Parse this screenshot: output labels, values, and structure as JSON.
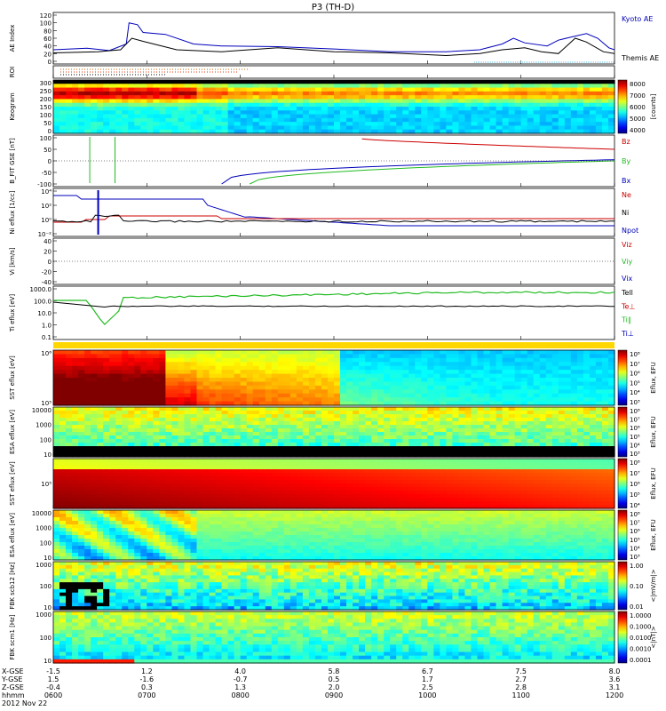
{
  "title": "P3 (TH-D)",
  "date_label": "2012 Nov 22",
  "colors": {
    "red": "#cc0000",
    "green": "#22bb22",
    "blue": "#0000bb",
    "black": "#000000"
  },
  "chart_data": [
    {
      "type": "line",
      "id": "ae",
      "ylabel": "AE Index",
      "yticks": [
        "120",
        "100",
        "80",
        "60",
        "40",
        "20",
        "0"
      ],
      "series": [
        {
          "name": "Kyoto AE",
          "color": "blue",
          "points": [
            [
              0,
              30
            ],
            [
              0.06,
              34
            ],
            [
              0.1,
              28
            ],
            [
              0.13,
              45
            ],
            [
              0.135,
              100
            ],
            [
              0.15,
              95
            ],
            [
              0.16,
              75
            ],
            [
              0.2,
              70
            ],
            [
              0.25,
              45
            ],
            [
              0.3,
              40
            ],
            [
              0.4,
              38
            ],
            [
              0.5,
              32
            ],
            [
              0.6,
              25
            ],
            [
              0.7,
              25
            ],
            [
              0.76,
              30
            ],
            [
              0.8,
              45
            ],
            [
              0.82,
              60
            ],
            [
              0.84,
              48
            ],
            [
              0.88,
              40
            ],
            [
              0.9,
              55
            ],
            [
              0.92,
              62
            ],
            [
              0.95,
              72
            ],
            [
              0.97,
              60
            ],
            [
              0.99,
              35
            ],
            [
              1,
              30
            ]
          ]
        },
        {
          "name": "Themis AE",
          "color": "black",
          "points": [
            [
              0,
              22
            ],
            [
              0.08,
              25
            ],
            [
              0.12,
              30
            ],
            [
              0.14,
              60
            ],
            [
              0.16,
              52
            ],
            [
              0.22,
              30
            ],
            [
              0.3,
              25
            ],
            [
              0.4,
              35
            ],
            [
              0.5,
              25
            ],
            [
              0.6,
              22
            ],
            [
              0.7,
              15
            ],
            [
              0.76,
              20
            ],
            [
              0.8,
              30
            ],
            [
              0.84,
              35
            ],
            [
              0.87,
              25
            ],
            [
              0.9,
              20
            ],
            [
              0.93,
              60
            ],
            [
              0.95,
              50
            ],
            [
              0.98,
              25
            ],
            [
              1,
              20
            ]
          ]
        }
      ]
    },
    {
      "type": "line",
      "id": "roi",
      "ylabel": "ROI"
    },
    {
      "type": "heatmap",
      "id": "kee",
      "ylabel": "Keogram",
      "yticks": [
        "300",
        "250",
        "200",
        "150",
        "100",
        "50",
        "0"
      ],
      "cbar_ticks": [
        "8000",
        "7000",
        "6000",
        "5000",
        "4000"
      ],
      "cbar_label": "[counts]"
    },
    {
      "type": "line",
      "id": "bfit",
      "ylabel": "B_FIT GSE [nT]",
      "yticks": [
        "100",
        "50",
        "0",
        "-50",
        "-100"
      ],
      "series": [
        {
          "name": "Bz",
          "color": "red"
        },
        {
          "name": "By",
          "color": "green"
        },
        {
          "name": "Bx",
          "color": "blue"
        }
      ]
    },
    {
      "type": "line",
      "id": "ni",
      "ylabel": "Ni eflux [1/cc]",
      "yticks": [
        "10⁴",
        "10²",
        "10⁰",
        "10⁻²"
      ],
      "series": [
        {
          "name": "Ne",
          "color": "red"
        },
        {
          "name": "Ni",
          "color": "black"
        },
        {
          "name": "Npot",
          "color": "blue"
        }
      ]
    },
    {
      "type": "line",
      "id": "vi",
      "ylabel": "Vi [km/s]",
      "yticks": [
        "40",
        "20",
        "0",
        "-20",
        "-40"
      ],
      "series": [
        {
          "name": "Viz",
          "color": "red"
        },
        {
          "name": "Viy",
          "color": "green"
        },
        {
          "name": "Vix",
          "color": "blue"
        }
      ]
    },
    {
      "type": "line",
      "id": "ti",
      "ylabel": "Ti eflux [eV]",
      "yticks": [
        "1000.0",
        "100.0",
        "10.0",
        "1.0",
        "0.1"
      ],
      "series": [
        {
          "name": "Tell",
          "color": "black"
        },
        {
          "name": "Te⊥",
          "color": "red"
        },
        {
          "name": "Ti∥",
          "color": "green"
        },
        {
          "name": "Ti⊥",
          "color": "blue"
        }
      ]
    },
    {
      "type": "heatmap",
      "id": "sst1",
      "ylabel": "SST eflux [eV]",
      "yticks": [
        "10⁶",
        "10⁵"
      ],
      "cbar_ticks": [
        "10⁸",
        "10⁷",
        "10⁶",
        "10⁵",
        "10⁴",
        "10³"
      ],
      "cbar_label": "Eflux, EFU"
    },
    {
      "type": "heatmap",
      "id": "esa1",
      "ylabel": "ESA eflux [eV]",
      "yticks": [
        "10000",
        "1000",
        "100",
        "10"
      ],
      "cbar_ticks": [
        "10⁸",
        "10⁷",
        "10⁶",
        "10⁵",
        "10⁴",
        "10³"
      ],
      "cbar_label": "Eflux, EFU"
    },
    {
      "type": "heatmap",
      "id": "sst2",
      "ylabel": "SST eflux [eV]",
      "yticks": [
        "10⁵"
      ],
      "cbar_ticks": [
        "10⁸",
        "10⁷",
        "10⁶",
        "10⁵",
        "10⁴"
      ],
      "cbar_label": "Eflux, EFU"
    },
    {
      "type": "heatmap",
      "id": "esa2",
      "ylabel": "ESA eflux [eV]",
      "yticks": [
        "10000",
        "1000",
        "100",
        "10"
      ],
      "cbar_ticks": [
        "10⁸",
        "10⁷",
        "10⁶",
        "10⁵",
        "10⁴",
        "10³"
      ],
      "cbar_label": "Eflux, EFU"
    },
    {
      "type": "heatmap",
      "id": "fbk1",
      "ylabel": "FBK scb12 [Hz]",
      "yticks": [
        "1000",
        "100",
        "10"
      ],
      "cbar_ticks": [
        "1.00",
        "0.10",
        "0.01"
      ],
      "cbar_label": "<|mV/m|>"
    },
    {
      "type": "heatmap",
      "id": "fbk2",
      "ylabel": "FBK scm1 [Hz]",
      "yticks": [
        "1000",
        "100",
        "10"
      ],
      "cbar_ticks": [
        "1.0000",
        "0.1000",
        "0.0100",
        "0.0010",
        "0.0001"
      ],
      "cbar_label": "<|nT|>"
    }
  ],
  "axis_table": {
    "row_labels": [
      "X-GSE",
      "Y-GSE",
      "Z-GSE",
      "hhmm",
      "2012 Nov 22"
    ],
    "columns": [
      [
        "-1.5",
        "1.5",
        "-0.4",
        "0600"
      ],
      [
        "1.2",
        "-1.6",
        "0.3",
        "0700"
      ],
      [
        "4.0",
        "-0.7",
        "1.3",
        "0800"
      ],
      [
        "5.8",
        "0.5",
        "2.0",
        "0900"
      ],
      [
        "6.7",
        "1.7",
        "2.5",
        "1000"
      ],
      [
        "7.5",
        "2.7",
        "2.8",
        "1100"
      ],
      [
        "8.0",
        "3.6",
        "3.1",
        "1200"
      ]
    ]
  }
}
